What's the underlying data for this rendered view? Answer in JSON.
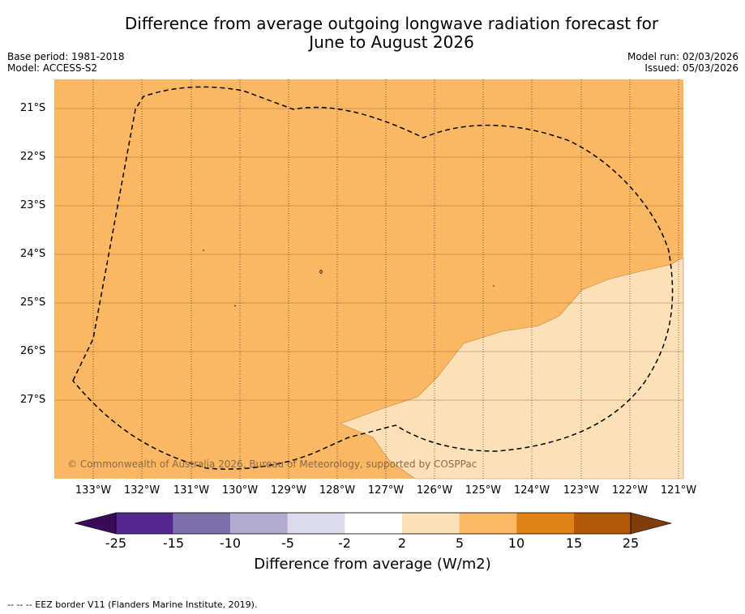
{
  "header": {
    "title_line1": "Difference from average outgoing longwave radiation forecast for",
    "title_line2": "June to August 2026",
    "base_period": "Base period: 1981-2018",
    "model": "Model: ACCESS-S2",
    "model_run": "Model run: 02/03/2026",
    "issued": "Issued: 05/03/2026"
  },
  "map": {
    "latitude_labels": [
      "21°S",
      "22°S",
      "23°S",
      "24°S",
      "25°S",
      "26°S",
      "27°S"
    ],
    "longitude_labels": [
      "133°W",
      "132°W",
      "131°W",
      "130°W",
      "129°W",
      "128°W",
      "127°W",
      "126°W",
      "125°W",
      "124°W",
      "123°W",
      "122°W",
      "121°W"
    ],
    "copyright": "© Commonwealth of Australia 2026, Bureau of Meteorology, supported by COSPPac",
    "fill_colors": {
      "background": "#fbb762",
      "low_anomaly": "#fde0b6"
    },
    "legend": {
      "tick_labels": [
        "-25",
        "-15",
        "-10",
        "-5",
        "-2",
        "2",
        "5",
        "10",
        "15",
        "25"
      ],
      "colors": [
        "#3a0a5a",
        "#54278f",
        "#7f6fab",
        "#b2aad1",
        "#dadbeb",
        "#ffffff",
        "#fee0b6",
        "#fdb863",
        "#e08214",
        "#b35806",
        "#7f3b08"
      ],
      "title": "Difference from average (W/m2)"
    },
    "footnote": "--  --  -- EEZ border V11 (Flanders Marine Institute, 2019)."
  }
}
